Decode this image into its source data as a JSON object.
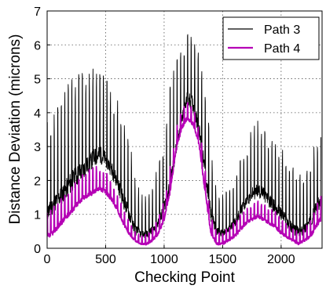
{
  "chart_data": {
    "type": "line",
    "xlabel": "Checking Point",
    "ylabel": "Distance Deviation (microns)",
    "xlim": [
      0,
      2350
    ],
    "ylim": [
      0,
      7
    ],
    "x_ticks": [
      "0",
      "500",
      "1000",
      "1500",
      "2000"
    ],
    "x_tick_values": [
      0,
      500,
      1000,
      1500,
      2000
    ],
    "y_ticks": [
      "0",
      "1",
      "2",
      "3",
      "4",
      "5",
      "6",
      "7"
    ],
    "y_tick_values": [
      0,
      1,
      2,
      3,
      4,
      5,
      6,
      7
    ],
    "grid": true,
    "legend_position": "top-right",
    "series": [
      {
        "name": "Path 3",
        "color": "#000000",
        "x": [
          0,
          25,
          50,
          100,
          150,
          200,
          250,
          300,
          350,
          400,
          450,
          500,
          550,
          600,
          650,
          700,
          750,
          800,
          850,
          900,
          950,
          1000,
          1050,
          1100,
          1150,
          1200,
          1250,
          1300,
          1350,
          1400,
          1450,
          1500,
          1550,
          1600,
          1650,
          1700,
          1750,
          1800,
          1850,
          1900,
          1950,
          2000,
          2050,
          2100,
          2150,
          2200,
          2250,
          2300,
          2340
        ],
        "base": [
          0.8,
          0.9,
          1.0,
          1.2,
          1.4,
          1.6,
          1.8,
          2.0,
          2.2,
          2.4,
          2.5,
          2.4,
          2.1,
          1.7,
          1.2,
          0.8,
          0.4,
          0.3,
          0.3,
          0.4,
          0.6,
          1.0,
          1.6,
          2.6,
          3.6,
          4.2,
          4.0,
          3.2,
          2.0,
          0.8,
          0.4,
          0.3,
          0.4,
          0.6,
          0.9,
          1.2,
          1.4,
          1.5,
          1.4,
          1.2,
          1.0,
          0.8,
          0.6,
          0.4,
          0.3,
          0.4,
          0.6,
          1.0,
          1.2
        ],
        "peak": [
          3.8,
          3.6,
          4.0,
          4.3,
          4.6,
          5.2,
          5.3,
          5.3,
          5.1,
          5.4,
          5.4,
          5.0,
          4.7,
          4.5,
          3.8,
          3.3,
          2.2,
          1.6,
          1.6,
          1.8,
          2.5,
          3.0,
          4.8,
          5.6,
          5.9,
          6.7,
          6.6,
          5.9,
          4.8,
          3.0,
          1.6,
          1.6,
          1.8,
          2.2,
          2.6,
          3.1,
          3.5,
          3.8,
          3.6,
          3.3,
          3.2,
          3.0,
          2.8,
          2.4,
          2.2,
          2.3,
          2.6,
          3.3,
          3.4
        ]
      },
      {
        "name": "Path 4",
        "color": "#b500b5",
        "x": [
          0,
          25,
          50,
          100,
          150,
          200,
          250,
          300,
          350,
          400,
          450,
          500,
          550,
          600,
          650,
          700,
          750,
          800,
          850,
          900,
          950,
          1000,
          1050,
          1100,
          1150,
          1200,
          1250,
          1300,
          1350,
          1400,
          1450,
          1500,
          1550,
          1600,
          1650,
          1700,
          1750,
          1800,
          1850,
          1900,
          1950,
          2000,
          2050,
          2100,
          2150,
          2200,
          2250,
          2300,
          2340
        ],
        "base": [
          0.3,
          0.3,
          0.4,
          0.6,
          0.8,
          1.0,
          1.2,
          1.4,
          1.5,
          1.6,
          1.7,
          1.6,
          1.4,
          1.1,
          0.7,
          0.4,
          0.2,
          0.1,
          0.1,
          0.2,
          0.4,
          0.8,
          1.6,
          2.8,
          3.5,
          3.8,
          3.6,
          3.0,
          1.6,
          0.4,
          0.1,
          0.1,
          0.2,
          0.3,
          0.5,
          0.7,
          0.8,
          0.9,
          0.8,
          0.7,
          0.6,
          0.4,
          0.3,
          0.2,
          0.1,
          0.2,
          0.3,
          0.6,
          0.8
        ],
        "peak": [
          1.1,
          1.1,
          1.2,
          1.4,
          1.6,
          1.8,
          2.0,
          2.2,
          2.3,
          2.5,
          2.4,
          2.3,
          2.0,
          1.6,
          1.2,
          0.8,
          0.5,
          0.4,
          0.4,
          0.6,
          0.9,
          1.4,
          2.4,
          3.5,
          4.2,
          4.4,
          4.2,
          3.6,
          2.4,
          1.0,
          0.5,
          0.5,
          0.6,
          0.8,
          1.0,
          1.2,
          1.3,
          1.4,
          1.3,
          1.2,
          1.1,
          0.9,
          0.7,
          0.6,
          0.5,
          0.6,
          0.8,
          1.3,
          1.6
        ]
      }
    ]
  }
}
